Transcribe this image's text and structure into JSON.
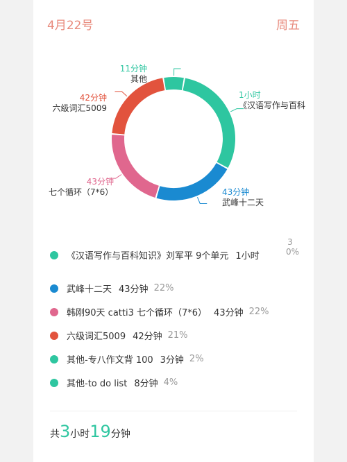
{
  "header": {
    "date": "4月22号",
    "weekday": "周五"
  },
  "chart_data": {
    "type": "pie",
    "title": "",
    "slices": [
      {
        "name": "《汉语写作与百科知识》刘军平 9个单元",
        "label_name": "《汉语写作与百科",
        "duration": "1小时",
        "value": 60,
        "color": "#2ec6a0"
      },
      {
        "name": "武峰十二天",
        "label_name": "武峰十二天",
        "duration": "43分钟",
        "value": 43,
        "color": "#1a8ad1"
      },
      {
        "name": "韩刚90天 catti3 七个循环（7*6）",
        "label_name": "七个循环（7*6）",
        "duration": "43分钟",
        "value": 43,
        "color": "#e0678e"
      },
      {
        "name": "六级词汇5009",
        "label_name": "六级词汇5009",
        "duration": "42分钟",
        "value": 42,
        "color": "#e2533d"
      },
      {
        "name": "其他",
        "label_name": "其他",
        "duration": "11分钟",
        "value": 11,
        "color": "#2ec6a0"
      }
    ]
  },
  "legend": [
    {
      "label": "《汉语写作与百科知识》刘军平 9个单元",
      "duration": "1小时",
      "percent": "30%",
      "color": "#2ec6a0"
    },
    {
      "label": "武峰十二天",
      "duration": "43分钟",
      "percent": "22%",
      "color": "#1a8ad1"
    },
    {
      "label": "韩刚90天 catti3 七个循环（7*6）",
      "duration": "43分钟",
      "percent": "22%",
      "color": "#e0678e"
    },
    {
      "label": "六级词汇5009",
      "duration": "42分钟",
      "percent": "21%",
      "color": "#e2533d"
    },
    {
      "label": "其他-专八作文背 100",
      "duration": "3分钟",
      "percent": "2%",
      "color": "#2ec6a0"
    },
    {
      "label": "其他-to do list",
      "duration": "8分钟",
      "percent": "4%",
      "color": "#2ec6a0"
    }
  ],
  "total": {
    "prefix": "共",
    "hours": "3",
    "hours_unit": "小时",
    "minutes": "19",
    "minutes_unit": "分钟"
  }
}
